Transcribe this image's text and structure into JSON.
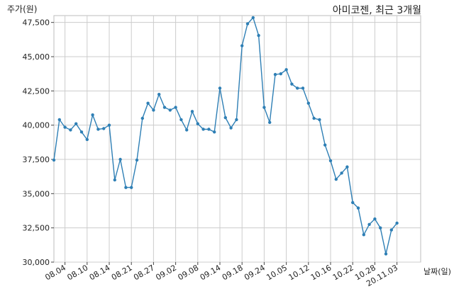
{
  "chart_data": {
    "type": "line",
    "title": "아미코젠, 최근 3개월",
    "ylabel": "주가(원)",
    "xlabel": "날짜(일)",
    "ylim": [
      30000,
      48000
    ],
    "yticks": [
      "30,000",
      "32,500",
      "35,000",
      "37,500",
      "40,000",
      "42,500",
      "45,000",
      "47,500"
    ],
    "ytick_values": [
      30000,
      32500,
      35000,
      37500,
      40000,
      42500,
      45000,
      47500
    ],
    "xticks": [
      {
        "label": "08.04",
        "index": 2
      },
      {
        "label": "08.10",
        "index": 6
      },
      {
        "label": "08.14",
        "index": 10
      },
      {
        "label": "08.21",
        "index": 14
      },
      {
        "label": "08.27",
        "index": 18
      },
      {
        "label": "09.02",
        "index": 22
      },
      {
        "label": "09.08",
        "index": 26
      },
      {
        "label": "09.14",
        "index": 30
      },
      {
        "label": "09.18",
        "index": 34
      },
      {
        "label": "09.24",
        "index": 38
      },
      {
        "label": "10.05",
        "index": 42
      },
      {
        "label": "10.12",
        "index": 46
      },
      {
        "label": "10.16",
        "index": 50
      },
      {
        "label": "10.22",
        "index": 54
      },
      {
        "label": "10.28",
        "index": 58
      },
      {
        "label": "20.11.03",
        "index": 62
      }
    ],
    "grid": true,
    "series": [
      {
        "color": "#2e7fb5",
        "values": [
          37450,
          40400,
          39850,
          39650,
          40100,
          39500,
          38950,
          40750,
          39700,
          39750,
          40000,
          36000,
          37500,
          35450,
          35450,
          37450,
          40500,
          41600,
          41100,
          42250,
          41300,
          41100,
          41300,
          40400,
          39650,
          41000,
          40100,
          39700,
          39700,
          39500,
          42700,
          40550,
          39800,
          40400,
          45800,
          47400,
          47850,
          46550,
          41300,
          40200,
          43700,
          43750,
          44050,
          43000,
          42700,
          42700,
          41600,
          40500,
          40400,
          38550,
          37400,
          36050,
          36500,
          36950,
          34350,
          33950,
          32000,
          32750,
          33150,
          32500,
          30600,
          32350,
          32850
        ]
      }
    ]
  }
}
